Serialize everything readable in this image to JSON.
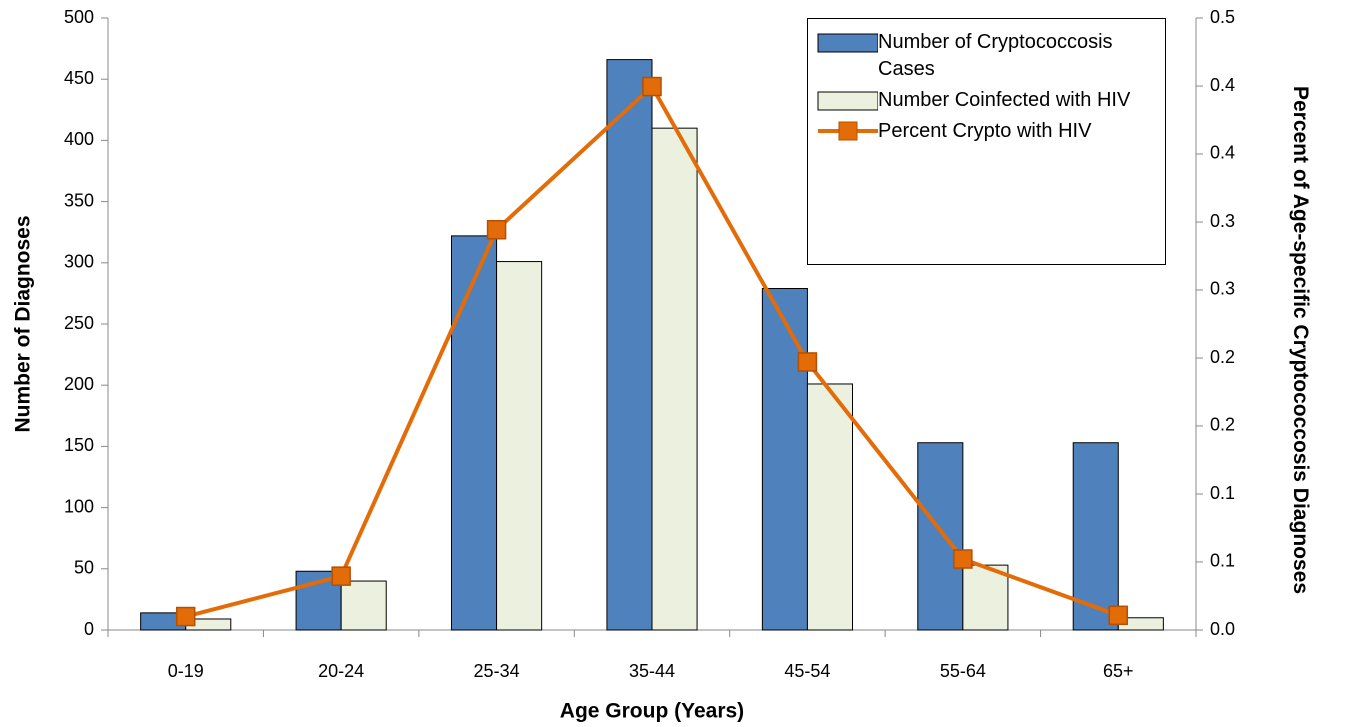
{
  "chart_data": {
    "type": "bar",
    "x_label": "Age Group (Years)",
    "y_label": "Number of Diagnoses",
    "y2_label": "Percent of Age-specific Cryptococcosis Diagnoses",
    "categories": [
      "0-19",
      "20-24",
      "25-34",
      "35-44",
      "45-54",
      "55-64",
      "65+"
    ],
    "series": [
      {
        "name": "Number of Cryptococcosis Cases",
        "type": "bar",
        "color": "#4f81bd",
        "values": [
          14,
          48,
          322,
          466,
          279,
          153,
          153
        ]
      },
      {
        "name": "Number Coinfected with HIV",
        "type": "bar",
        "color": "#ebf1de",
        "values": [
          9,
          40,
          301,
          410,
          201,
          53,
          10
        ]
      },
      {
        "name": "Percent Crypto with HIV",
        "type": "line",
        "axis": "y2",
        "color": "#e36c09",
        "values": [
          0.011,
          0.044,
          0.327,
          0.444,
          0.219,
          0.058,
          0.012
        ]
      }
    ],
    "ylim": [
      0,
      500
    ],
    "yticks": [
      0,
      50,
      100,
      150,
      200,
      250,
      300,
      350,
      400,
      450,
      500
    ],
    "y2lim": [
      0,
      0.5
    ],
    "y2ticks": [
      {
        "value": 0,
        "label": "0.0"
      },
      {
        "value": 0.0556,
        "label": "0.1"
      },
      {
        "value": 0.1111,
        "label": "0.1"
      },
      {
        "value": 0.1667,
        "label": "0.2"
      },
      {
        "value": 0.2222,
        "label": "0.2"
      },
      {
        "value": 0.2778,
        "label": "0.3"
      },
      {
        "value": 0.3333,
        "label": "0.3"
      },
      {
        "value": 0.3889,
        "label": "0.4"
      },
      {
        "value": 0.4444,
        "label": "0.4"
      },
      0.5
    ],
    "legend": "upper right"
  }
}
